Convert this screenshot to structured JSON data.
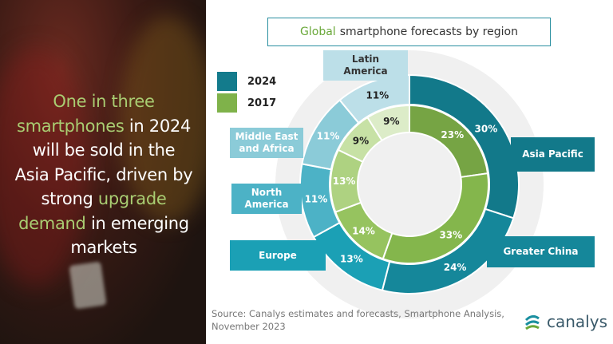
{
  "headline": {
    "parts": [
      {
        "text": "One in three",
        "highlight": true
      },
      {
        "text": "smartphones",
        "highlight": true
      },
      {
        "text": " in 2024",
        "highlight": false
      },
      {
        "text": "will be sold in the",
        "highlight": false
      },
      {
        "text": "Asia Pacific, driven by",
        "highlight": false
      },
      {
        "text": "strong ",
        "highlight": false
      },
      {
        "text": "upgrade",
        "highlight": true
      },
      {
        "text": "demand",
        "highlight": true
      },
      {
        "text": " in emerging",
        "highlight": false
      },
      {
        "text": "markets",
        "highlight": false
      }
    ],
    "highlight_color": "#a9cd72"
  },
  "chart_data": {
    "type": "pie",
    "subtype": "double-donut",
    "title_prefix": "Global",
    "title": "smartphone forecasts by region",
    "legend": [
      {
        "label": "2024",
        "color": "#137b8c"
      },
      {
        "label": "2017",
        "color": "#7fb24a"
      }
    ],
    "categories": [
      "Asia Pacific",
      "Greater China",
      "Europe",
      "North America",
      "Middle East and Africa",
      "Latin America"
    ],
    "series": [
      {
        "name": "2024",
        "ring": "outer",
        "values": [
          30,
          24,
          13,
          11,
          11,
          11
        ],
        "labels": [
          "30%",
          "24%",
          "13%",
          "11%",
          "11%",
          "11%"
        ],
        "colors": [
          "#12798a",
          "#15879a",
          "#1ba0b5",
          "#4cb2c6",
          "#8bcbd8",
          "#bcdfe8"
        ]
      },
      {
        "name": "2017",
        "ring": "inner",
        "values": [
          23,
          33,
          14,
          13,
          9,
          9
        ],
        "labels": [
          "23%",
          "33%",
          "14%",
          "13%",
          "9%",
          "9%"
        ],
        "colors": [
          "#76a444",
          "#84b64c",
          "#96c35f",
          "#aed281",
          "#c7e1a5",
          "#dcecc8"
        ]
      }
    ],
    "category_labels": {
      "Asia Pacific": "Asia Pacific",
      "Greater China": "Greater China",
      "Europe": "Europe",
      "North America": "North\nAmerica",
      "Middle East and Africa": "Middle East\nand Africa",
      "Latin America": "Latin\nAmerica"
    }
  },
  "source": {
    "line1": "Source: Canalys estimates and forecasts, Smartphone Analysis,",
    "line2": "November 2023"
  },
  "logo": {
    "text": "canalys"
  }
}
